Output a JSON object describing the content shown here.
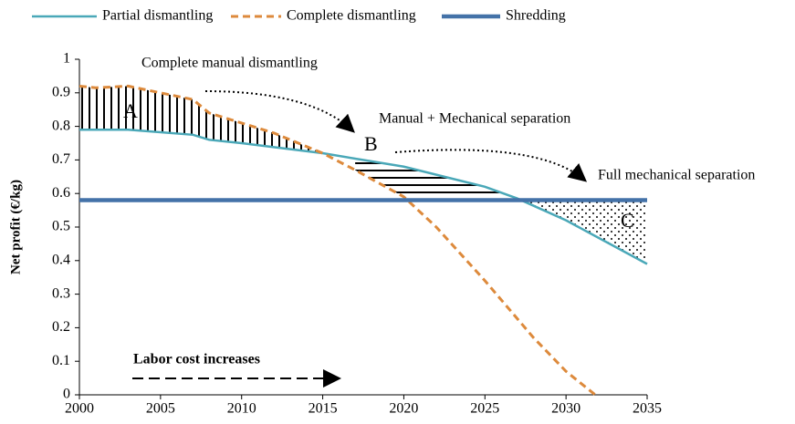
{
  "chart_data": {
    "type": "line",
    "y_label": "Net profit (€/kg)",
    "xlim": [
      2000,
      2035
    ],
    "xticks": [
      2000,
      2005,
      2010,
      2015,
      2020,
      2025,
      2030,
      2035
    ],
    "ylim": [
      0,
      1
    ],
    "yticks": [
      0,
      0.1,
      0.2,
      0.3,
      0.4,
      0.5,
      0.6,
      0.7,
      0.8,
      0.9,
      1
    ],
    "series": [
      {
        "name": "Partial dismantling",
        "color": "#4aa8b8",
        "style": "solid",
        "x": [
          2000,
          2003,
          2007,
          2008,
          2010,
          2015,
          2020,
          2025,
          2027,
          2030,
          2035
        ],
        "values": [
          0.79,
          0.79,
          0.775,
          0.76,
          0.75,
          0.72,
          0.68,
          0.62,
          0.585,
          0.52,
          0.39
        ]
      },
      {
        "name": "Complete dismantling",
        "color": "#dd8a3c",
        "style": "dashed",
        "x": [
          2000,
          2001,
          2003,
          2005,
          2007,
          2008,
          2010,
          2012,
          2015,
          2017,
          2020,
          2022,
          2025,
          2028,
          2030,
          2031.8
        ],
        "values": [
          0.92,
          0.915,
          0.92,
          0.9,
          0.88,
          0.84,
          0.81,
          0.78,
          0.72,
          0.67,
          0.59,
          0.5,
          0.34,
          0.17,
          0.07,
          0
        ]
      },
      {
        "name": "Shredding",
        "color": "#4472a8",
        "style": "thick",
        "x": [
          2000,
          2035
        ],
        "values": [
          0.58,
          0.58
        ]
      }
    ],
    "annotations": [
      "Complete manual dismantling",
      "Manual + Mechanical separation",
      "Full mechanical separation",
      "A",
      "B",
      "C",
      "Labor cost increases"
    ]
  }
}
